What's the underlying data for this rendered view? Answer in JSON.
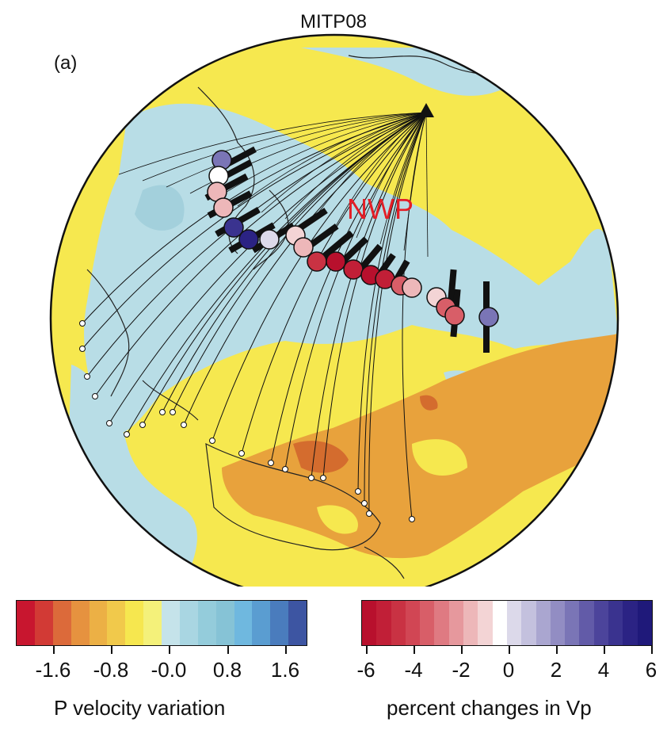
{
  "title": "MITP08",
  "panel_label": "(a)",
  "region_label": "NWP",
  "colorbar_left": {
    "title": "P velocity variation",
    "tick_labels": [
      "-1.6",
      "-0.8",
      "-0.0",
      "0.8",
      "1.6"
    ],
    "colors": [
      "#c8162f",
      "#d23a35",
      "#dc6a3a",
      "#e6923f",
      "#ecb045",
      "#f1c94b",
      "#f6e74f",
      "#f4f17a",
      "#c5e3ea",
      "#a9d6e2",
      "#94ccdb",
      "#86c3d6",
      "#6fb8df",
      "#5a9dd1",
      "#4a7cbd",
      "#3d55a2"
    ]
  },
  "colorbar_right": {
    "title": "percent changes in Vp",
    "tick_labels": [
      "-6",
      "-4",
      "-2",
      "0",
      "2",
      "4",
      "6"
    ],
    "colors": [
      "#b8102d",
      "#c11f37",
      "#c93243",
      "#d14654",
      "#d85e68",
      "#df7a82",
      "#e6989d",
      "#edb7b9",
      "#f3d4d5",
      "#ffffff",
      "#dcd9ea",
      "#c4c1de",
      "#aaa6d0",
      "#928dc3",
      "#7a75b6",
      "#625ba8",
      "#4c449b",
      "#3a338f",
      "#2b2384",
      "#1f197a"
    ]
  },
  "map_colors": {
    "yellow": "#f6e84f",
    "light_blue": "#b8dde6",
    "orange": "#e8a23c",
    "dark_orange": "#d46c2e",
    "ray": "#111111"
  }
}
